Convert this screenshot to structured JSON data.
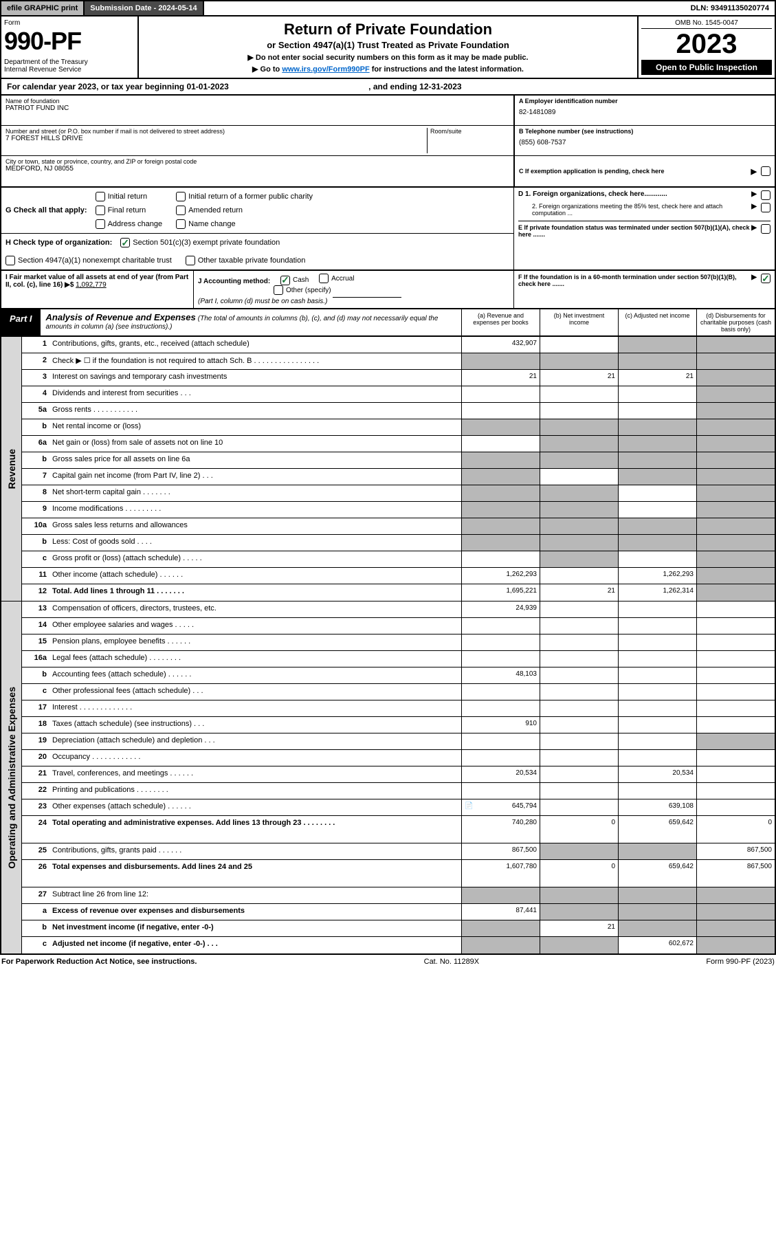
{
  "top": {
    "efile": "efile GRAPHIC print",
    "submission": "Submission Date - 2024-05-14",
    "dln": "DLN: 93491135020774"
  },
  "header": {
    "form": "Form",
    "num": "990-PF",
    "dept": "Department of the Treasury\nInternal Revenue Service",
    "title": "Return of Private Foundation",
    "sub1": "or Section 4947(a)(1) Trust Treated as Private Foundation",
    "note1": "▶ Do not enter social security numbers on this form as it may be made public.",
    "note2_pre": "▶ Go to ",
    "note2_link": "www.irs.gov/Form990PF",
    "note2_post": " for instructions and the latest information.",
    "omb": "OMB No. 1545-0047",
    "year": "2023",
    "open": "Open to Public Inspection"
  },
  "cal": "For calendar year 2023, or tax year beginning 01-01-2023",
  "cal_end": ", and ending 12-31-2023",
  "info": {
    "name_lbl": "Name of foundation",
    "name": "PATRIOT FUND INC",
    "addr_lbl": "Number and street (or P.O. box number if mail is not delivered to street address)",
    "addr": "7 FOREST HILLS DRIVE",
    "room_lbl": "Room/suite",
    "city_lbl": "City or town, state or province, country, and ZIP or foreign postal code",
    "city": "MEDFORD, NJ  08055",
    "ein_lbl": "A Employer identification number",
    "ein": "82-1481089",
    "tel_lbl": "B Telephone number (see instructions)",
    "tel": "(855) 608-7537",
    "c_lbl": "C If exemption application is pending, check here",
    "d1": "D 1. Foreign organizations, check here............",
    "d2": "2. Foreign organizations meeting the 85% test, check here and attach computation ...",
    "e": "E  If private foundation status was terminated under section 507(b)(1)(A), check here .......",
    "f": "F  If the foundation is in a 60-month termination under section 507(b)(1)(B), check here .......",
    "g_lbl": "G Check all that apply:",
    "g_opts": [
      "Initial return",
      "Final return",
      "Address change",
      "Initial return of a former public charity",
      "Amended return",
      "Name change"
    ],
    "h_lbl": "H Check type of organization:",
    "h_opts": [
      "Section 501(c)(3) exempt private foundation",
      "Section 4947(a)(1) nonexempt charitable trust",
      "Other taxable private foundation"
    ],
    "i_lbl": "I Fair market value of all assets at end of year (from Part II, col. (c), line 16)",
    "i_val": "1,092,779",
    "j_lbl": "J Accounting method:",
    "j_opts": [
      "Cash",
      "Accrual",
      "Other (specify)"
    ],
    "j_note": "(Part I, column (d) must be on cash basis.)"
  },
  "part1": {
    "tag": "Part I",
    "title": "Analysis of Revenue and Expenses",
    "sub": "(The total of amounts in columns (b), (c), and (d) may not necessarily equal the amounts in column (a) (see instructions).)",
    "cols": [
      "(a)  Revenue and expenses per books",
      "(b)  Net investment income",
      "(c)  Adjusted net income",
      "(d)  Disbursements for charitable purposes (cash basis only)"
    ]
  },
  "side": {
    "rev": "Revenue",
    "oae": "Operating and Administrative Expenses"
  },
  "rows": [
    {
      "n": "1",
      "l": "Contributions, gifts, grants, etc., received (attach schedule)",
      "a": "432,907",
      "bg": [
        "",
        "",
        "g",
        "g"
      ]
    },
    {
      "n": "2",
      "l": "Check ▶ ☐ if the foundation is not required to attach Sch. B    .   .   .   .   .   .   .   .   .   .   .   .   .   .   .   .",
      "bg": [
        "g",
        "g",
        "g",
        "g"
      ]
    },
    {
      "n": "3",
      "l": "Interest on savings and temporary cash investments",
      "a": "21",
      "b": "21",
      "c": "21",
      "bg": [
        "",
        "",
        "",
        "g"
      ]
    },
    {
      "n": "4",
      "l": "Dividends and interest from securities    .   .   .",
      "bg": [
        "",
        "",
        "",
        "g"
      ]
    },
    {
      "n": "5a",
      "l": "Gross rents    .   .   .   .   .   .   .   .   .   .   .",
      "bg": [
        "",
        "",
        "",
        "g"
      ]
    },
    {
      "n": "b",
      "l": "Net rental income or (loss) ",
      "bg": [
        "g",
        "g",
        "g",
        "g"
      ]
    },
    {
      "n": "6a",
      "l": "Net gain or (loss) from sale of assets not on line 10",
      "bg": [
        "",
        "g",
        "g",
        "g"
      ]
    },
    {
      "n": "b",
      "l": "Gross sales price for all assets on line 6a",
      "bg": [
        "g",
        "g",
        "g",
        "g"
      ]
    },
    {
      "n": "7",
      "l": "Capital gain net income (from Part IV, line 2)   .   .   .",
      "bg": [
        "g",
        "",
        "g",
        "g"
      ]
    },
    {
      "n": "8",
      "l": "Net short-term capital gain   .   .   .   .   .   .   .",
      "bg": [
        "g",
        "g",
        "",
        "g"
      ]
    },
    {
      "n": "9",
      "l": "Income modifications   .   .   .   .   .   .   .   .   .",
      "bg": [
        "g",
        "g",
        "",
        "g"
      ]
    },
    {
      "n": "10a",
      "l": "Gross sales less returns and allowances",
      "bg": [
        "g",
        "g",
        "g",
        "g"
      ]
    },
    {
      "n": "b",
      "l": "Less: Cost of goods sold    .   .   .   .",
      "bg": [
        "g",
        "g",
        "g",
        "g"
      ]
    },
    {
      "n": "c",
      "l": "Gross profit or (loss) (attach schedule)    .   .   .   .   .",
      "bg": [
        "",
        "g",
        "",
        "g"
      ]
    },
    {
      "n": "11",
      "l": "Other income (attach schedule)    .   .   .   .   .   .",
      "a": "1,262,293",
      "c": "1,262,293",
      "bg": [
        "",
        "",
        "",
        "g"
      ]
    },
    {
      "n": "12",
      "l": "Total. Add lines 1 through 11    .   .   .   .   .   .   .",
      "a": "1,695,221",
      "b": "21",
      "c": "1,262,314",
      "bold": true,
      "bg": [
        "",
        "",
        "",
        "g"
      ]
    },
    {
      "n": "13",
      "l": "Compensation of officers, directors, trustees, etc.",
      "a": "24,939",
      "bg": [
        "",
        "",
        "",
        ""
      ]
    },
    {
      "n": "14",
      "l": "Other employee salaries and wages    .   .   .   .   .",
      "bg": [
        "",
        "",
        "",
        ""
      ]
    },
    {
      "n": "15",
      "l": "Pension plans, employee benefits   .   .   .   .   .   .",
      "bg": [
        "",
        "",
        "",
        ""
      ]
    },
    {
      "n": "16a",
      "l": "Legal fees (attach schedule)   .   .   .   .   .   .   .   .",
      "bg": [
        "",
        "",
        "",
        ""
      ]
    },
    {
      "n": "b",
      "l": "Accounting fees (attach schedule)   .   .   .   .   .   .",
      "a": "48,103",
      "bg": [
        "",
        "",
        "",
        ""
      ]
    },
    {
      "n": "c",
      "l": "Other professional fees (attach schedule)    .   .   .",
      "bg": [
        "",
        "",
        "",
        ""
      ]
    },
    {
      "n": "17",
      "l": "Interest   .   .   .   .   .   .   .   .   .   .   .   .   .",
      "bg": [
        "",
        "",
        "",
        ""
      ]
    },
    {
      "n": "18",
      "l": "Taxes (attach schedule) (see instructions)    .   .   .",
      "a": "910",
      "bg": [
        "",
        "",
        "",
        ""
      ]
    },
    {
      "n": "19",
      "l": "Depreciation (attach schedule) and depletion    .   .   .",
      "bg": [
        "",
        "",
        "",
        "g"
      ]
    },
    {
      "n": "20",
      "l": "Occupancy   .   .   .   .   .   .   .   .   .   .   .   .",
      "bg": [
        "",
        "",
        "",
        ""
      ]
    },
    {
      "n": "21",
      "l": "Travel, conferences, and meetings   .   .   .   .   .   .",
      "a": "20,534",
      "c": "20,534",
      "bg": [
        "",
        "",
        "",
        ""
      ]
    },
    {
      "n": "22",
      "l": "Printing and publications   .   .   .   .   .   .   .   .",
      "bg": [
        "",
        "",
        "",
        ""
      ]
    },
    {
      "n": "23",
      "l": "Other expenses (attach schedule)   .   .   .   .   .   .",
      "a": "645,794",
      "c": "639,108",
      "icon": true,
      "bg": [
        "",
        "",
        "",
        ""
      ]
    },
    {
      "n": "24",
      "l": "Total operating and administrative expenses. Add lines 13 through 23    .   .   .   .   .   .   .   .",
      "a": "740,280",
      "b": "0",
      "c": "659,642",
      "d": "0",
      "bold": true,
      "tall": true,
      "bg": [
        "",
        "",
        "",
        ""
      ]
    },
    {
      "n": "25",
      "l": "Contributions, gifts, grants paid    .   .   .   .   .   .",
      "a": "867,500",
      "d": "867,500",
      "bg": [
        "",
        "g",
        "g",
        ""
      ]
    },
    {
      "n": "26",
      "l": "Total expenses and disbursements. Add lines 24 and 25",
      "a": "1,607,780",
      "b": "0",
      "c": "659,642",
      "d": "867,500",
      "bold": true,
      "tall": true,
      "bg": [
        "",
        "",
        "",
        ""
      ]
    },
    {
      "n": "27",
      "l": "Subtract line 26 from line 12:",
      "bg": [
        "g",
        "g",
        "g",
        "g"
      ]
    },
    {
      "n": "a",
      "l": "Excess of revenue over expenses and disbursements",
      "a": "87,441",
      "bold": true,
      "bg": [
        "",
        "g",
        "g",
        "g"
      ]
    },
    {
      "n": "b",
      "l": "Net investment income (if negative, enter -0-)",
      "b": "21",
      "bold": true,
      "bg": [
        "g",
        "",
        "g",
        "g"
      ]
    },
    {
      "n": "c",
      "l": "Adjusted net income (if negative, enter -0-)   .   .   .",
      "c": "602,672",
      "bold": true,
      "bg": [
        "g",
        "g",
        "",
        "g"
      ]
    }
  ],
  "footer": {
    "l": "For Paperwork Reduction Act Notice, see instructions.",
    "c": "Cat. No. 11289X",
    "r": "Form 990-PF (2023)"
  }
}
